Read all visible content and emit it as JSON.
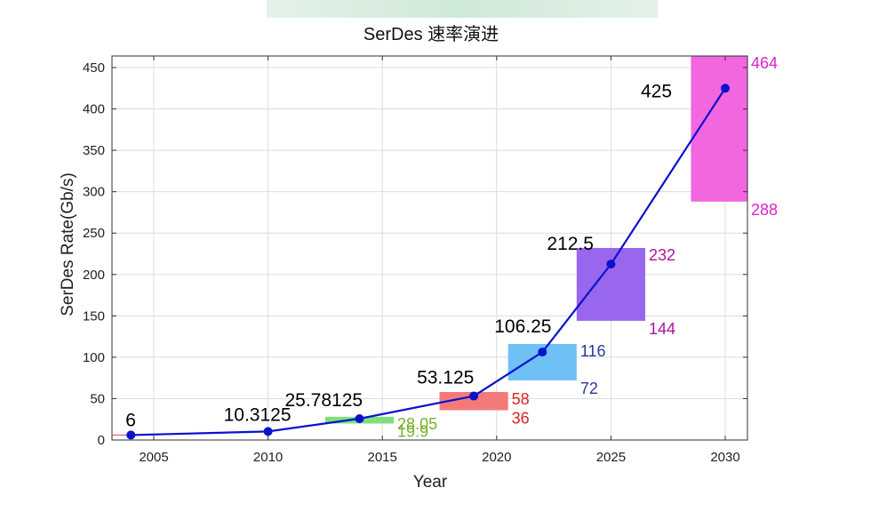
{
  "chart_data": {
    "type": "line",
    "title": "SerDes 速率演进",
    "xlabel": "Year",
    "ylabel": "SerDes Rate(Gb/s)",
    "xlim": [
      2003,
      2031
    ],
    "ylim": [
      0,
      460
    ],
    "grid": true,
    "xticks": [
      2005,
      2010,
      2015,
      2020,
      2025,
      2030
    ],
    "yticks": [
      0,
      50,
      100,
      150,
      200,
      250,
      300,
      350,
      400,
      450
    ],
    "series": [
      {
        "color": "#0a12cc",
        "x": [
          2004,
          2010,
          2014,
          2019,
          2022,
          2025,
          2030
        ],
        "values": [
          6,
          10.3125,
          25.78125,
          53.125,
          106.25,
          212.5,
          425
        ],
        "labels": [
          "6",
          "10.3125",
          "25.78125",
          "53.125",
          "106.25",
          "212.5",
          "425"
        ]
      }
    ],
    "ranges": [
      {
        "x0": 2012.5,
        "x1": 2015.5,
        "low": 19.9,
        "high": 28.05,
        "low_label": "19.9",
        "high_label": "28.05",
        "fill": "#7ee07a",
        "text_color": "#7ab030"
      },
      {
        "x0": 2017.5,
        "x1": 2020.5,
        "low": 36,
        "high": 58,
        "low_label": "36",
        "high_label": "58",
        "fill": "#f47a7a",
        "text_color": "#dd2222"
      },
      {
        "x0": 2020.5,
        "x1": 2023.5,
        "low": 72,
        "high": 116,
        "low_label": "72",
        "high_label": "116",
        "fill": "#6ec0f5",
        "text_color": "#2a3a99"
      },
      {
        "x0": 2023.5,
        "x1": 2026.5,
        "low": 144,
        "high": 232,
        "low_label": "144",
        "high_label": "232",
        "fill": "#9966ee",
        "text_color": "#b0109c"
      },
      {
        "x0": 2028.5,
        "x1": 2031,
        "low": 288,
        "high": 464,
        "low_label": "288",
        "high_label": "464",
        "fill": "#f266e0",
        "text_color": "#dd22cc"
      }
    ],
    "reference_line": {
      "y": 6,
      "color": "#e06060"
    }
  }
}
